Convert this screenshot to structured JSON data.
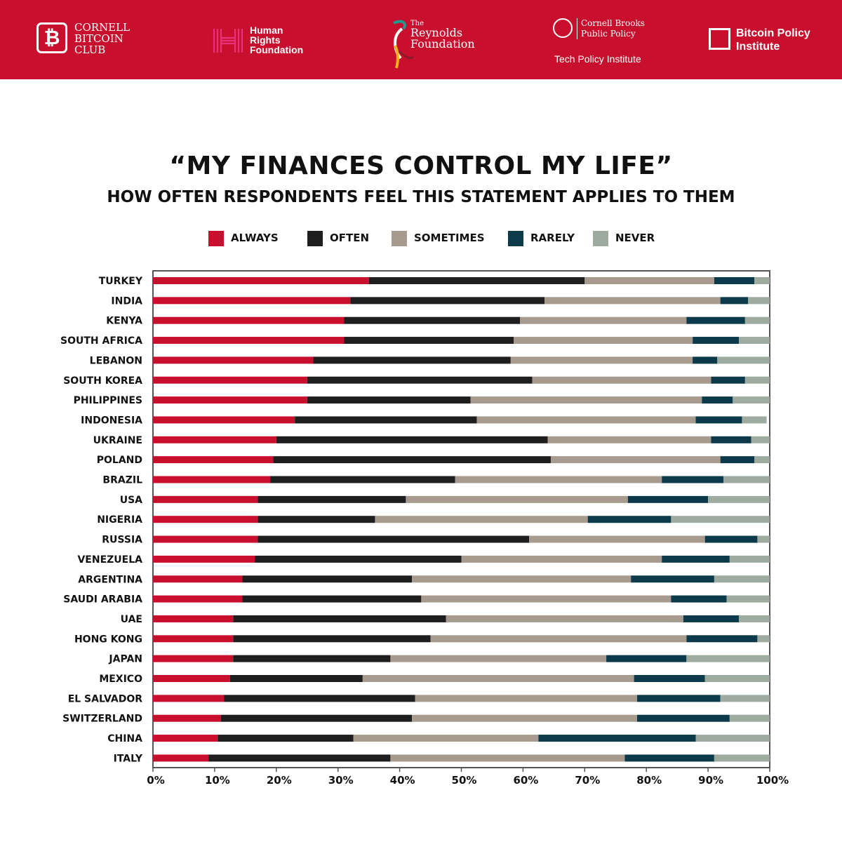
{
  "header": {
    "logos": {
      "cornell_bitcoin_club": {
        "mark": "₿",
        "text": "CORNELL\nBITCOIN\nCLUB"
      },
      "human_rights_foundation": {
        "text": "Human\nRights\nFoundation"
      },
      "reynolds_foundation": {
        "the": "The",
        "text": "Reynolds\nFoundation"
      },
      "cornell_brooks": {
        "text": "Cornell Brooks\nPublic Policy",
        "sub": "Tech Policy Institute"
      },
      "bitcoin_policy_institute": {
        "text": "Bitcoin Policy\nInstitute"
      }
    },
    "colors": {
      "bar": "#c8102e",
      "hrf": "#e8327c",
      "reynolds_gold": "#f2b31a",
      "reynolds_teal": "#1a9b8e"
    }
  },
  "chart_data": {
    "type": "bar",
    "orientation": "horizontal",
    "stacked": true,
    "title": "“MY FINANCES CONTROL MY LIFE”",
    "subtitle": "HOW OFTEN RESPONDENTS FEEL THIS STATEMENT APPLIES TO THEM",
    "legend_position": "top",
    "grid": false,
    "xlim": [
      0,
      100
    ],
    "x_ticks": [
      "0%",
      "10%",
      "20%",
      "30%",
      "40%",
      "50%",
      "60%",
      "70%",
      "80%",
      "90%",
      "100%"
    ],
    "categories": [
      "TURKEY",
      "INDIA",
      "KENYA",
      "SOUTH AFRICA",
      "LEBANON",
      "SOUTH KOREA",
      "PHILIPPINES",
      "INDONESIA",
      "UKRAINE",
      "POLAND",
      "BRAZIL",
      "USA",
      "NIGERIA",
      "RUSSIA",
      "VENEZUELA",
      "ARGENTINA",
      "SAUDI ARABIA",
      "UAE",
      "HONG KONG",
      "JAPAN",
      "MEXICO",
      "EL SALVADOR",
      "SWITZERLAND",
      "CHINA",
      "ITALY"
    ],
    "series": [
      {
        "name": "ALWAYS",
        "color": "#c8102e",
        "values": [
          35,
          32,
          31,
          31,
          26,
          25,
          25,
          23,
          20,
          19.5,
          19,
          17,
          17,
          17,
          16.5,
          14.5,
          14.5,
          13,
          13,
          13,
          12.5,
          11.5,
          11,
          10.5,
          9
        ]
      },
      {
        "name": "OFTEN",
        "color": "#1e1e1e",
        "values": [
          35,
          31.5,
          28.5,
          27.5,
          32,
          36.5,
          26.5,
          29.5,
          44,
          45,
          30,
          24,
          19,
          44,
          33.5,
          27.5,
          29,
          34.5,
          32,
          25.5,
          21.5,
          31,
          31,
          22,
          29.5
        ]
      },
      {
        "name": "SOMETIMES",
        "color": "#a69b8e",
        "values": [
          21,
          28.5,
          27,
          29,
          29.5,
          29,
          37.5,
          35.5,
          26.5,
          27.5,
          33.5,
          36,
          34.5,
          28.5,
          32.5,
          35.5,
          40.5,
          38.5,
          41.5,
          35,
          44,
          36,
          36.5,
          30,
          38
        ]
      },
      {
        "name": "RARELY",
        "color": "#0d3a4a",
        "values": [
          6.5,
          4.5,
          9.5,
          7.5,
          4,
          5.5,
          5,
          7.5,
          6.5,
          5.5,
          10,
          13,
          13.5,
          8.5,
          11,
          13.5,
          9,
          9,
          11.5,
          13,
          11.5,
          13.5,
          15,
          25.5,
          14.5
        ]
      },
      {
        "name": "NEVER",
        "color": "#9eaba0",
        "values": [
          2.5,
          3.5,
          4,
          5,
          8.5,
          4,
          6,
          4,
          3,
          2.5,
          7.5,
          10,
          16,
          2,
          6.5,
          9,
          7,
          5,
          2,
          13.5,
          10.5,
          8,
          6.5,
          12,
          9
        ]
      }
    ]
  }
}
